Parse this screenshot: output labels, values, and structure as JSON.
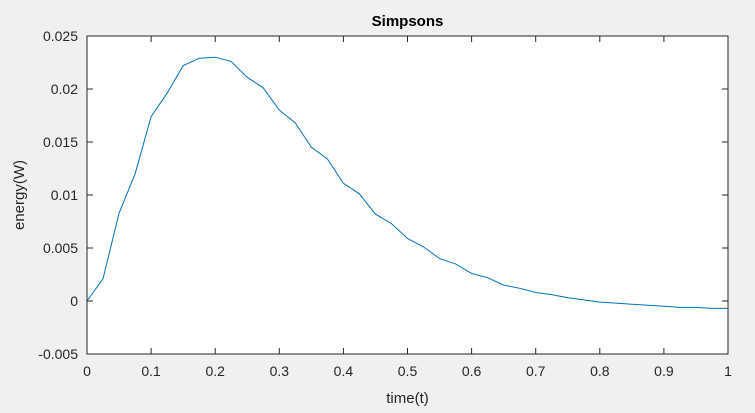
{
  "chart_data": {
    "type": "line",
    "title": "Simpsons",
    "xlabel": "time(t)",
    "ylabel": "energy(W)",
    "xlim": [
      0,
      1
    ],
    "ylim": [
      -0.005,
      0.025
    ],
    "xticks": [
      0,
      0.1,
      0.2,
      0.3,
      0.4,
      0.5,
      0.6,
      0.7,
      0.8,
      0.9,
      1
    ],
    "xtick_labels": [
      "0",
      "0.1",
      "0.2",
      "0.3",
      "0.4",
      "0.5",
      "0.6",
      "0.7",
      "0.8",
      "0.9",
      "1"
    ],
    "yticks": [
      -0.005,
      0,
      0.005,
      0.01,
      0.015,
      0.02,
      0.025
    ],
    "ytick_labels": [
      "-0.005",
      "0",
      "0.005",
      "0.01",
      "0.015",
      "0.02",
      "0.025"
    ],
    "grid": false,
    "legend": "none",
    "series": [
      {
        "color": "#0072bd",
        "x": [
          0,
          0.025,
          0.05,
          0.075,
          0.1,
          0.125,
          0.15,
          0.175,
          0.2,
          0.225,
          0.25,
          0.275,
          0.3,
          0.325,
          0.35,
          0.375,
          0.4,
          0.425,
          0.45,
          0.475,
          0.5,
          0.525,
          0.55,
          0.575,
          0.6,
          0.625,
          0.65,
          0.675,
          0.7,
          0.725,
          0.75,
          0.775,
          0.8,
          0.825,
          0.85,
          0.875,
          0.9,
          0.925,
          0.95,
          0.975,
          1
        ],
        "y": [
          0,
          0.0021,
          0.0083,
          0.012,
          0.0174,
          0.0196,
          0.0222,
          0.0229,
          0.023,
          0.0226,
          0.0211,
          0.0201,
          0.018,
          0.0168,
          0.0145,
          0.0134,
          0.0111,
          0.0101,
          0.0082,
          0.0073,
          0.0059,
          0.0051,
          0.004,
          0.0035,
          0.0026,
          0.0022,
          0.0015,
          0.0012,
          0.0008,
          0.0006,
          0.0003,
          0.0001,
          -0.0001,
          -0.0002,
          -0.0003,
          -0.0004,
          -0.0005,
          -0.0006,
          -0.0006,
          -0.0007,
          -0.0007
        ]
      }
    ]
  },
  "colors": {
    "figure_background": "#f0f0f0",
    "axes_background": "#ffffff",
    "axis_line": "#262626"
  }
}
